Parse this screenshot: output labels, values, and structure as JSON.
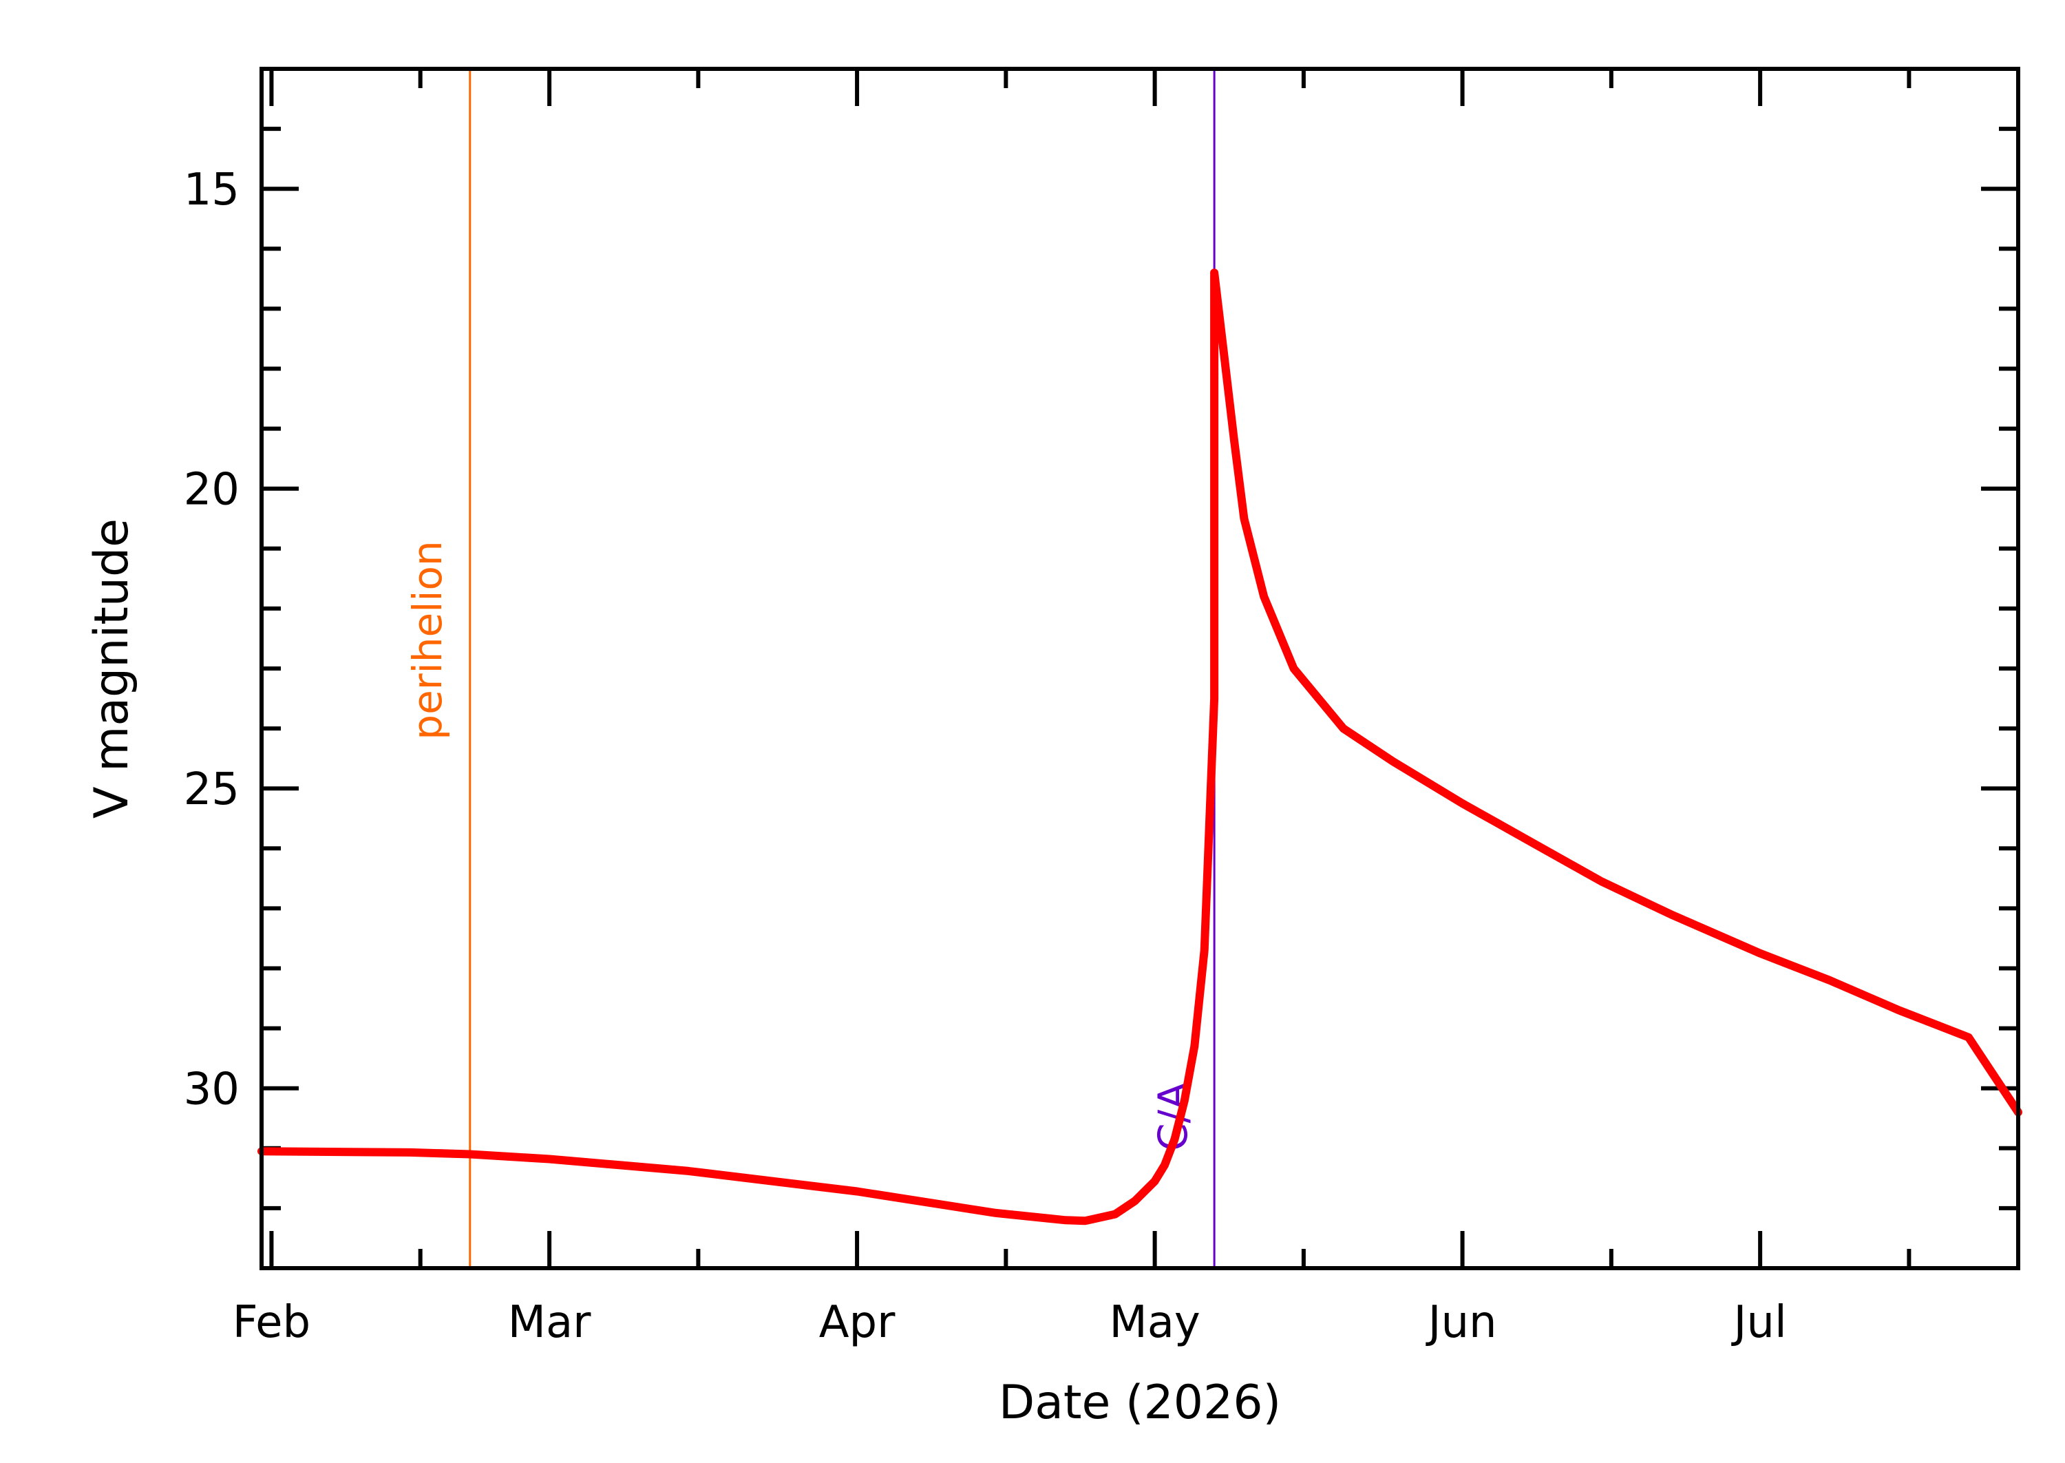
{
  "chart_data": {
    "type": "line",
    "xlabel": "Date (2026)",
    "ylabel": "V magnitude",
    "x_axis": {
      "type": "date",
      "range": [
        "2026-01-31",
        "2026-07-27"
      ],
      "tick_labels": [
        "Feb",
        "Mar",
        "Apr",
        "May",
        "Jun",
        "Jul"
      ],
      "major_ticks": [
        "2026-02-01",
        "2026-03-01",
        "2026-04-01",
        "2026-05-01",
        "2026-06-01",
        "2026-07-01"
      ],
      "minor_ticks": [
        "2026-02-16",
        "2026-03-16",
        "2026-04-16",
        "2026-05-16",
        "2026-06-16",
        "2026-07-16"
      ]
    },
    "y_axis": {
      "inverted": true,
      "range": [
        13,
        33
      ],
      "tick_labels": [
        "15",
        "20",
        "25",
        "30"
      ],
      "major_ticks": [
        15,
        20,
        25,
        30
      ],
      "minor_ticks": [
        14,
        16,
        17,
        18,
        19,
        21,
        22,
        23,
        24,
        26,
        27,
        28,
        29,
        31,
        32
      ]
    },
    "series": [
      {
        "color": "#ff0000",
        "points": [
          [
            "2026-01-31",
            31.05
          ],
          [
            "2026-02-15",
            31.07
          ],
          [
            "2026-02-21",
            31.1
          ],
          [
            "2026-03-01",
            31.18
          ],
          [
            "2026-03-15",
            31.38
          ],
          [
            "2026-04-01",
            31.72
          ],
          [
            "2026-04-15",
            32.08
          ],
          [
            "2026-04-22",
            32.2
          ],
          [
            "2026-04-24",
            32.21
          ],
          [
            "2026-04-27",
            32.1
          ],
          [
            "2026-04-29",
            31.88
          ],
          [
            "2026-05-01",
            31.55
          ],
          [
            "2026-05-02",
            31.28
          ],
          [
            "2026-05-03",
            30.85
          ],
          [
            "2026-05-04",
            30.2
          ],
          [
            "2026-05-05",
            29.3
          ],
          [
            "2026-05-06",
            27.7
          ],
          [
            "2026-05-07",
            23.5
          ],
          [
            "2026-05-07",
            16.4
          ],
          [
            "2026-05-08",
            17.8
          ],
          [
            "2026-05-09",
            19.2
          ],
          [
            "2026-05-10",
            20.5
          ],
          [
            "2026-05-12",
            21.8
          ],
          [
            "2026-05-15",
            23.0
          ],
          [
            "2026-05-20",
            24.0
          ],
          [
            "2026-05-25",
            24.55
          ],
          [
            "2026-06-01",
            25.25
          ],
          [
            "2026-06-08",
            25.9
          ],
          [
            "2026-06-15",
            26.55
          ],
          [
            "2026-06-22",
            27.1
          ],
          [
            "2026-07-01",
            27.75
          ],
          [
            "2026-07-08",
            28.2
          ],
          [
            "2026-07-15",
            28.7
          ],
          [
            "2026-07-22",
            29.15
          ],
          [
            "2026-07-27",
            30.4
          ]
        ]
      }
    ],
    "annotations": [
      {
        "label": "perihelion",
        "date": "2026-02-21",
        "color": "#ff6600",
        "style": "vertical-line"
      },
      {
        "label": "C/A",
        "date": "2026-05-07",
        "color": "#6600cc",
        "style": "vertical-line"
      }
    ]
  }
}
